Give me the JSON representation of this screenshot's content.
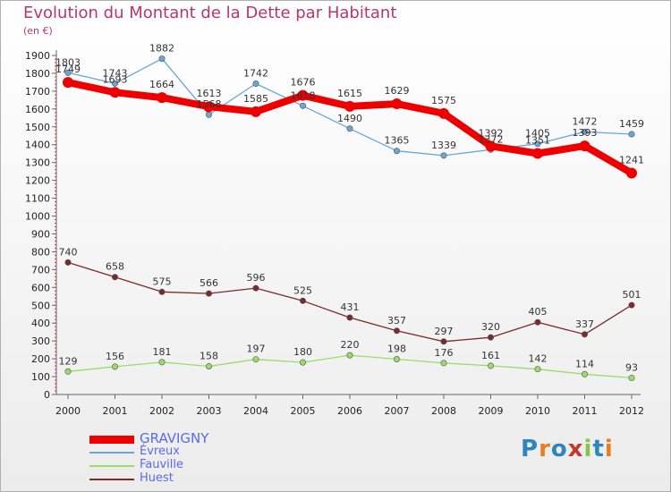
{
  "header": {
    "title": "Evolution du Montant de la Dette par Habitant",
    "subtitle": "(en €)"
  },
  "logo": {
    "text": "Proxiti",
    "letter_colors": [
      "#2e86c1",
      "#e67e22",
      "#2e86c1",
      "#c0392b",
      "#8bc34a",
      "#2e86c1",
      "#e67e22"
    ]
  },
  "chart_data": {
    "type": "line",
    "title": "Evolution du Montant de la Dette par Habitant",
    "subtitle": "(en €)",
    "x": [
      "2000",
      "2001",
      "2002",
      "2003",
      "2004",
      "2005",
      "2006",
      "2007",
      "2008",
      "2009",
      "2010",
      "2011",
      "2012"
    ],
    "ylim": [
      0,
      1900
    ],
    "yticks": [
      0,
      100,
      200,
      300,
      400,
      500,
      600,
      700,
      800,
      900,
      1000,
      1100,
      1200,
      1300,
      1400,
      1500,
      1600,
      1700,
      1800,
      1900
    ],
    "grid": false,
    "legend_position": "bottom-left",
    "series": [
      {
        "name": "GRAVIGNY",
        "color": "#ee0000",
        "values": [
          1749,
          1693,
          1664,
          1613,
          1585,
          1676,
          1615,
          1629,
          1575,
          1392,
          1351,
          1393,
          1241
        ]
      },
      {
        "name": "Évreux",
        "color": "#6aa6d6",
        "values": [
          1803,
          1743,
          1882,
          1568,
          1742,
          1618,
          1490,
          1365,
          1339,
          1372,
          1405,
          1472,
          1459
        ]
      },
      {
        "name": "Fauville",
        "color": "#99dd66",
        "values": [
          129,
          156,
          181,
          158,
          197,
          180,
          220,
          198,
          176,
          161,
          142,
          114,
          93
        ]
      },
      {
        "name": "Huest",
        "color": "#7b2a2a",
        "values": [
          740,
          658,
          575,
          566,
          596,
          525,
          431,
          357,
          297,
          320,
          405,
          337,
          501
        ]
      }
    ]
  }
}
